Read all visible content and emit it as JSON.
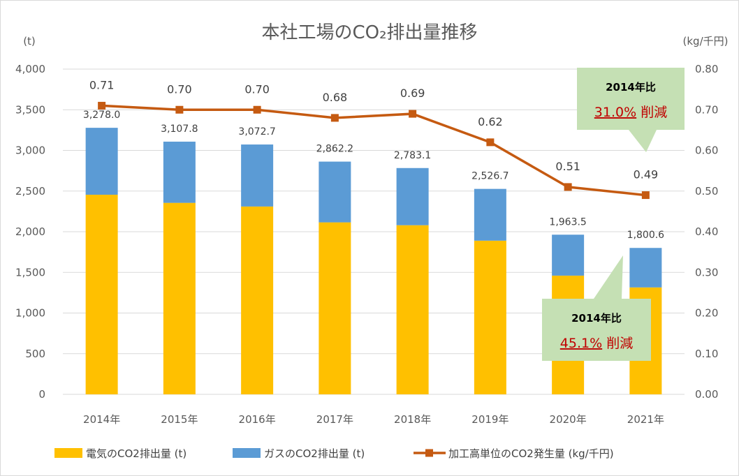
{
  "chart_data": {
    "type": "bar+line",
    "title": "本社工場のCO₂排出量推移",
    "ylabel_left": "(t)",
    "ylabel_right": "(kg/千円)",
    "categories": [
      "2014年",
      "2015年",
      "2016年",
      "2017年",
      "2018年",
      "2019年",
      "2020年",
      "2021年"
    ],
    "ylim_left": [
      0,
      4000
    ],
    "yticks_left": [
      "0",
      "500",
      "1,000",
      "1,500",
      "2,000",
      "2,500",
      "3,000",
      "3,500",
      "4,000"
    ],
    "ylim_right": [
      0,
      0.8
    ],
    "yticks_right": [
      "0.00",
      "0.10",
      "0.20",
      "0.30",
      "0.40",
      "0.50",
      "0.60",
      "0.70",
      "0.80"
    ],
    "grid": true,
    "legend_position": "bottom",
    "series": [
      {
        "name": "電気のCO2排出量 (t)",
        "type": "stacked-bar",
        "color": "#FFC000",
        "values": [
          2455,
          2355,
          2310,
          2115,
          2080,
          1890,
          1460,
          1315
        ]
      },
      {
        "name": "ガスのCO2排出量 (t)",
        "type": "stacked-bar",
        "color": "#5B9BD5",
        "values": [
          823.0,
          752.8,
          762.7,
          747.2,
          703.1,
          636.7,
          503.5,
          485.6
        ]
      },
      {
        "name": "加工高単位のCO2発生量 (kg/千円)",
        "type": "line",
        "color": "#C55A11",
        "axis": "right",
        "values": [
          0.71,
          0.7,
          0.7,
          0.68,
          0.69,
          0.62,
          0.51,
          0.49
        ]
      }
    ],
    "total_labels": [
      "3,278.0",
      "3,107.8",
      "3,072.7",
      "2,862.2",
      "2,783.1",
      "2,526.7",
      "1,963.5",
      "1,800.6"
    ],
    "line_labels": [
      "0.71",
      "0.70",
      "0.70",
      "0.68",
      "0.69",
      "0.62",
      "0.51",
      "0.49"
    ],
    "callouts": [
      {
        "title": "2014年比",
        "percent": "31.0%",
        "suffix": " 削減",
        "color": "#C5E0B4",
        "text_color": "#C00000"
      },
      {
        "title": "2014年比",
        "percent": "45.1%",
        "suffix": " 削減",
        "color": "#C5E0B4",
        "text_color": "#C00000"
      }
    ]
  }
}
